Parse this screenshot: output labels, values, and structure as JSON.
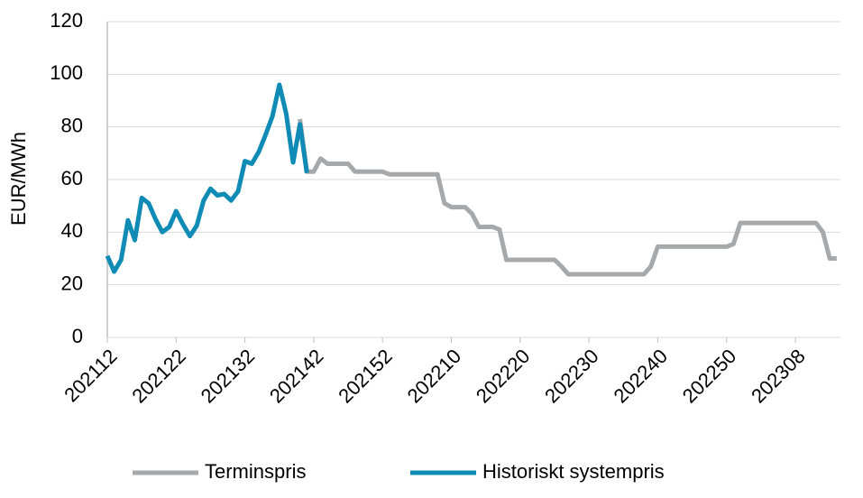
{
  "chart_data": {
    "type": "line",
    "y_label": "EUR/MWh",
    "categories": [
      "202112",
      null,
      null,
      null,
      null,
      null,
      null,
      null,
      null,
      null,
      "202122",
      null,
      null,
      null,
      null,
      null,
      null,
      null,
      null,
      null,
      "202132",
      null,
      null,
      null,
      null,
      null,
      null,
      null,
      null,
      null,
      "202142",
      null,
      null,
      null,
      null,
      null,
      null,
      null,
      null,
      null,
      "202152",
      null,
      null,
      null,
      null,
      null,
      null,
      null,
      null,
      null,
      "202210",
      null,
      null,
      null,
      null,
      null,
      null,
      null,
      null,
      null,
      "202220",
      null,
      null,
      null,
      null,
      null,
      null,
      null,
      null,
      null,
      "202230",
      null,
      null,
      null,
      null,
      null,
      null,
      null,
      null,
      null,
      "202240",
      null,
      null,
      null,
      null,
      null,
      null,
      null,
      null,
      null,
      "202250",
      null,
      null,
      null,
      null,
      null,
      null,
      null,
      null,
      null,
      "202308",
      null,
      null,
      null,
      null,
      null,
      null
    ],
    "series": [
      {
        "name": "Terminspris",
        "color": "#a5a9ab",
        "values": [
          null,
          null,
          null,
          null,
          null,
          null,
          null,
          null,
          null,
          null,
          null,
          null,
          null,
          null,
          null,
          null,
          null,
          null,
          null,
          null,
          null,
          null,
          null,
          null,
          null,
          null,
          null,
          null,
          83,
          63,
          63,
          68,
          66,
          66,
          66,
          66,
          63,
          63,
          63,
          63,
          63,
          62,
          62,
          62,
          62,
          62,
          62,
          62,
          62,
          51,
          49.5,
          49.5,
          49.5,
          47,
          42,
          42,
          42,
          41,
          29.5,
          29.5,
          29.5,
          29.5,
          29.5,
          29.5,
          29.5,
          29.5,
          27,
          24,
          24,
          24,
          24,
          24,
          24,
          24,
          24,
          24,
          24,
          24,
          24,
          27,
          34.5,
          34.5,
          34.5,
          34.5,
          34.5,
          34.5,
          34.5,
          34.5,
          34.5,
          34.5,
          34.5,
          35.5,
          43.5,
          43.5,
          43.5,
          43.5,
          43.5,
          43.5,
          43.5,
          43.5,
          43.5,
          43.5,
          43.5,
          43.5,
          40,
          30,
          30
        ]
      },
      {
        "name": "Historiskt systempris",
        "color": "#0f8bb5",
        "values": [
          31,
          25,
          29.5,
          44.5,
          37,
          53,
          51,
          45,
          40,
          42,
          48,
          43,
          38.5,
          42.5,
          52,
          56.5,
          54,
          54.5,
          52,
          55.5,
          67,
          66,
          70.5,
          77,
          84,
          96,
          85,
          66.5,
          81,
          62.5,
          null,
          null,
          null,
          null,
          null,
          null,
          null,
          null,
          null,
          null,
          null,
          null,
          null,
          null,
          null,
          null,
          null,
          null,
          null,
          null,
          null,
          null,
          null,
          null,
          null,
          null,
          null,
          null,
          null,
          null,
          null,
          null,
          null,
          null,
          null,
          null,
          null,
          null,
          null,
          null,
          null,
          null,
          null,
          null,
          null,
          null,
          null,
          null,
          null,
          null,
          null,
          null,
          null,
          null,
          null,
          null,
          null,
          null,
          null,
          null,
          null,
          null,
          null,
          null,
          null,
          null,
          null,
          null,
          null,
          null,
          null,
          null,
          null,
          null,
          null,
          null,
          null
        ]
      }
    ],
    "ylim": [
      0,
      120
    ],
    "yticks": [
      0,
      20,
      40,
      60,
      80,
      100,
      120
    ],
    "grid": true
  }
}
